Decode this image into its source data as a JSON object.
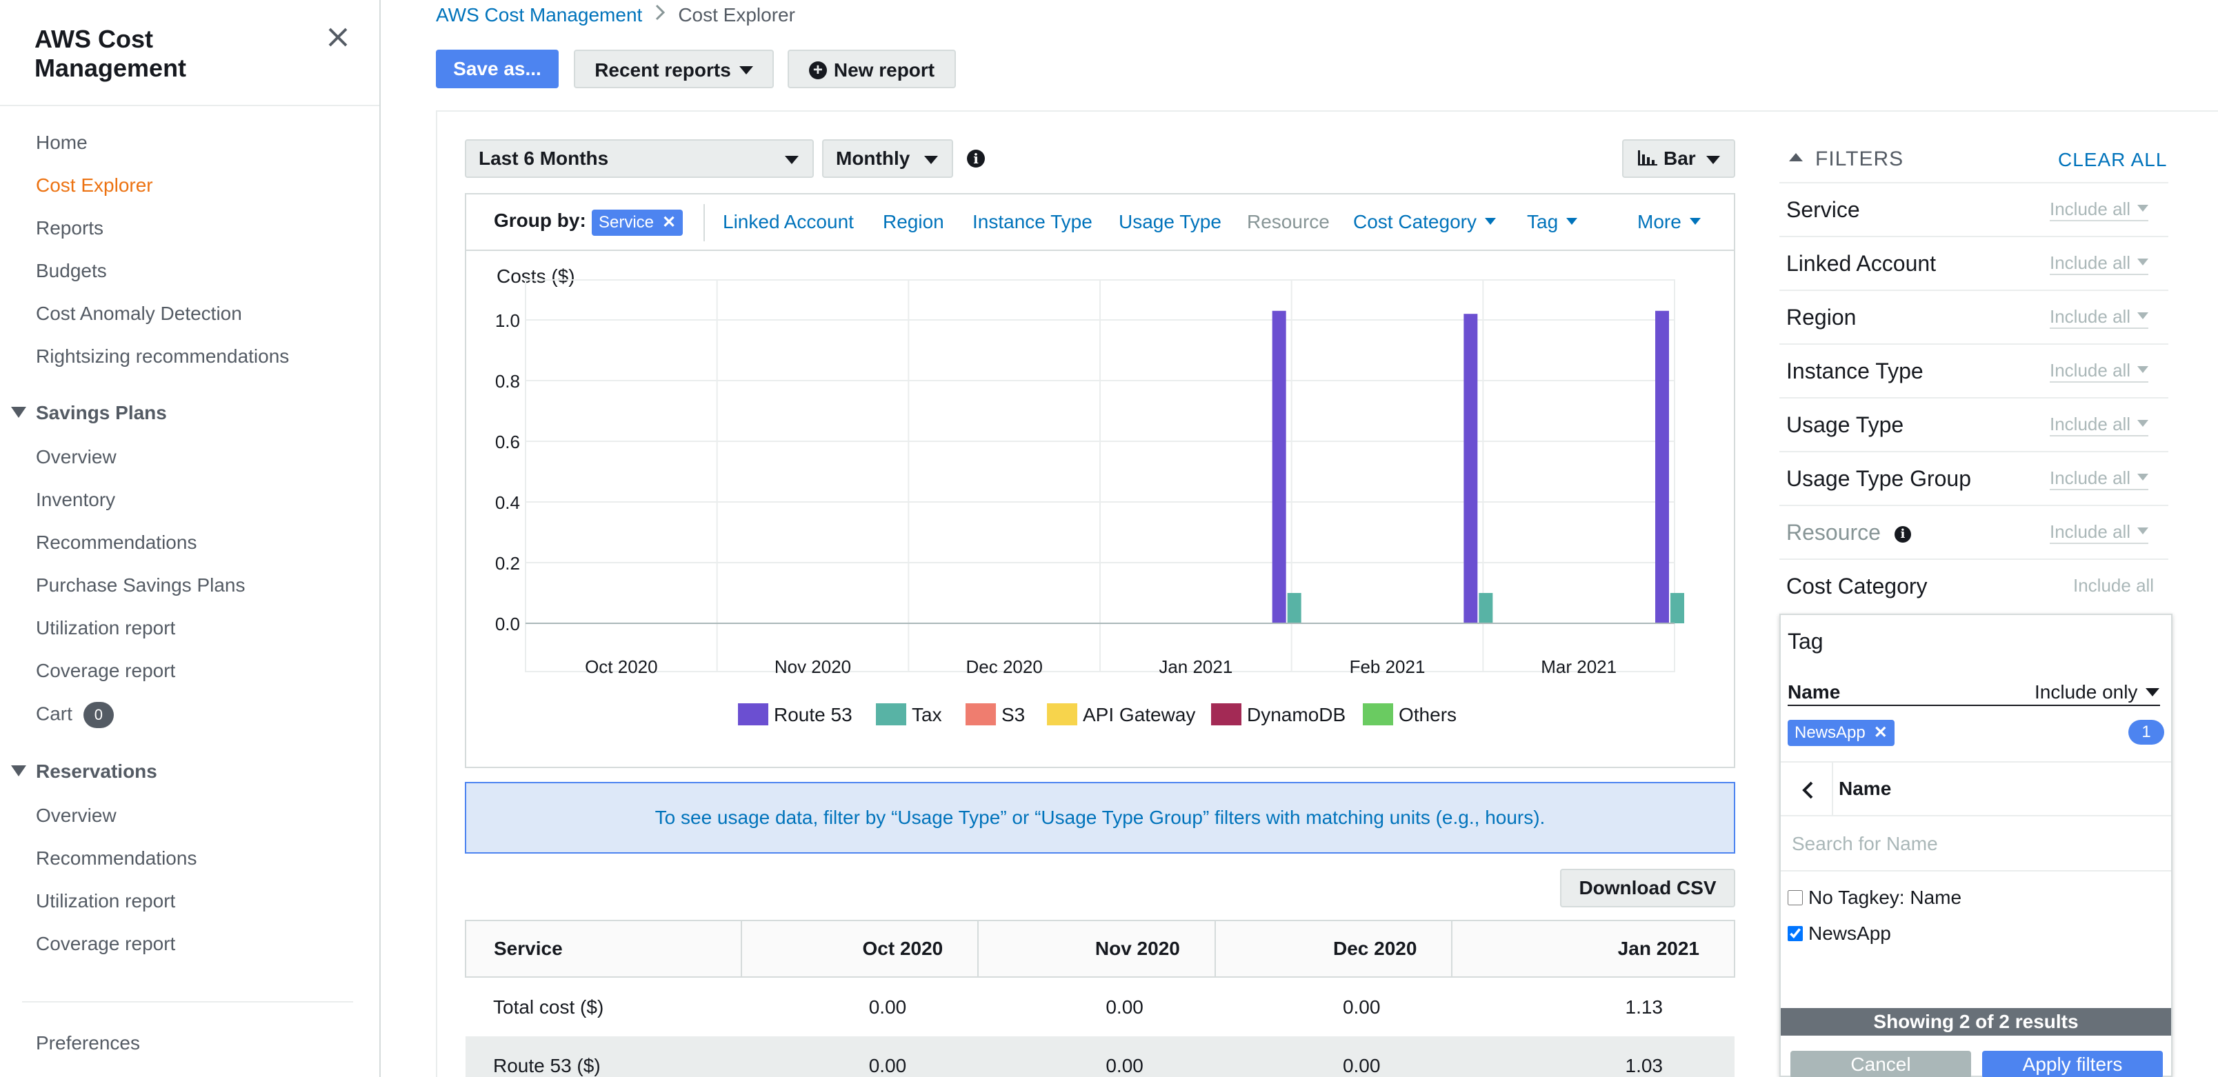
{
  "sidebar": {
    "title": "AWS Cost Management",
    "items": [
      {
        "label": "Home"
      },
      {
        "label": "Cost Explorer",
        "active": true
      },
      {
        "label": "Reports"
      },
      {
        "label": "Budgets"
      },
      {
        "label": "Cost Anomaly Detection"
      },
      {
        "label": "Rightsizing recommendations"
      }
    ],
    "savings_plans": {
      "title": "Savings Plans",
      "items": [
        "Overview",
        "Inventory",
        "Recommendations",
        "Purchase Savings Plans",
        "Utilization report",
        "Coverage report",
        "Cart"
      ],
      "cart_count": "0"
    },
    "reservations": {
      "title": "Reservations",
      "items": [
        "Overview",
        "Recommendations",
        "Utilization report",
        "Coverage report"
      ]
    },
    "preferences": "Preferences"
  },
  "breadcrumb": {
    "parent": "AWS Cost Management",
    "current": "Cost Explorer"
  },
  "toolbar": {
    "save_as": "Save as...",
    "recent_reports": "Recent reports",
    "new_report": "New report"
  },
  "controls": {
    "date_range": "Last 6 Months",
    "granularity": "Monthly",
    "chart_type": "Bar"
  },
  "group_by": {
    "label": "Group by:",
    "selected": "Service",
    "options": [
      "Linked Account",
      "Region",
      "Instance Type",
      "Usage Type",
      "Resource",
      "Cost Category",
      "Tag",
      "More"
    ]
  },
  "chart_data": {
    "type": "bar",
    "ylabel": "Costs ($)",
    "ylim": [
      0,
      1.1
    ],
    "yticks": [
      "1.0",
      "0.8",
      "0.6",
      "0.4",
      "0.2",
      "0.0"
    ],
    "categories": [
      "Oct 2020",
      "Nov 2020",
      "Dec 2020",
      "Jan 2021",
      "Feb 2021",
      "Mar 2021"
    ],
    "series": [
      {
        "name": "Route 53",
        "color": "#6b4fd1",
        "values": [
          0.0,
          0.0,
          0.0,
          1.03,
          1.02,
          1.03
        ]
      },
      {
        "name": "Tax",
        "color": "#58b3a5",
        "values": [
          0.0,
          0.0,
          0.0,
          0.1,
          0.1,
          0.1
        ]
      },
      {
        "name": "S3",
        "color": "#ef7d6f",
        "values": [
          0.0,
          0.0,
          0.0,
          0.0,
          0.0,
          0.0
        ]
      },
      {
        "name": "API Gateway",
        "color": "#f7d44c",
        "values": [
          0.0,
          0.0,
          0.0,
          0.0,
          0.0,
          0.0
        ]
      },
      {
        "name": "DynamoDB",
        "color": "#a32a55",
        "values": [
          0.0,
          0.0,
          0.0,
          0.0,
          0.0,
          0.0
        ]
      },
      {
        "name": "Others",
        "color": "#6acb61",
        "values": [
          0.0,
          0.0,
          0.0,
          0.0,
          0.0,
          0.0
        ]
      }
    ]
  },
  "info_banner": "To see usage data, filter by “Usage Type” or “Usage Type Group” filters with matching units (e.g., hours).",
  "download_csv": "Download CSV",
  "table": {
    "headers": [
      "Service",
      "Oct 2020",
      "Nov 2020",
      "Dec 2020",
      "Jan 2021"
    ],
    "rows": [
      [
        "Total cost ($)",
        "0.00",
        "0.00",
        "0.00",
        "1.13"
      ],
      [
        "Route 53 ($)",
        "0.00",
        "0.00",
        "0.00",
        "1.03"
      ]
    ]
  },
  "filters": {
    "header": "FILTERS",
    "clear_all": "CLEAR ALL",
    "rows": [
      {
        "label": "Service",
        "value": "Include all"
      },
      {
        "label": "Linked Account",
        "value": "Include all"
      },
      {
        "label": "Region",
        "value": "Include all"
      },
      {
        "label": "Instance Type",
        "value": "Include all"
      },
      {
        "label": "Usage Type",
        "value": "Include all"
      },
      {
        "label": "Usage Type Group",
        "value": "Include all"
      },
      {
        "label": "Resource",
        "value": "Include all"
      },
      {
        "label": "Cost Category",
        "value": "Include all"
      }
    ]
  },
  "tag_dropdown": {
    "title": "Tag",
    "name_label": "Name",
    "mode": "Include only",
    "selected_chip": "NewsApp",
    "count": "1",
    "nav_label": "Name",
    "search_placeholder": "Search for Name",
    "options": [
      {
        "label": "No Tagkey: Name",
        "checked": false
      },
      {
        "label": "NewsApp",
        "checked": true
      }
    ],
    "showing": "Showing 2 of 2 results",
    "cancel": "Cancel",
    "apply": "Apply filters"
  }
}
